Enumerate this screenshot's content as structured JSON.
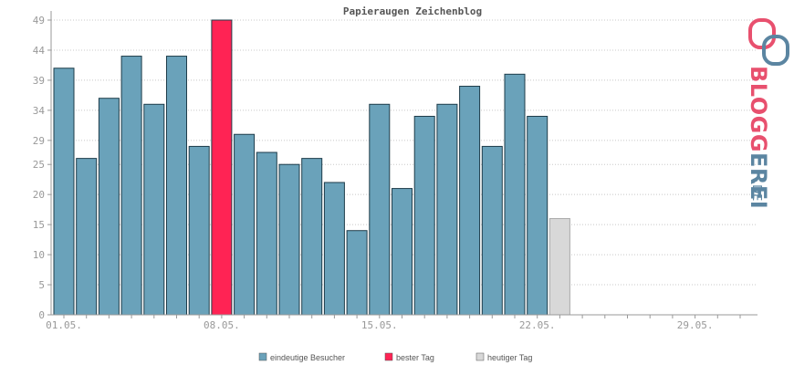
{
  "chart_data": {
    "type": "bar",
    "title": "Papieraugen Zeichenblog",
    "x_tick_labels": [
      "01.05.",
      "08.05.",
      "15.05.",
      "22.05.",
      "29.05."
    ],
    "x_tick_days": [
      1,
      8,
      15,
      22,
      29
    ],
    "days": [
      1,
      2,
      3,
      4,
      5,
      6,
      7,
      8,
      9,
      10,
      11,
      12,
      13,
      14,
      15,
      16,
      17,
      18,
      19,
      20,
      21,
      22,
      23
    ],
    "values": [
      41,
      26,
      36,
      43,
      35,
      43,
      28,
      49,
      30,
      27,
      25,
      26,
      22,
      14,
      35,
      21,
      33,
      35,
      38,
      28,
      40,
      33,
      16
    ],
    "kinds": [
      "normal",
      "normal",
      "normal",
      "normal",
      "normal",
      "normal",
      "normal",
      "best",
      "normal",
      "normal",
      "normal",
      "normal",
      "normal",
      "normal",
      "normal",
      "normal",
      "normal",
      "normal",
      "normal",
      "normal",
      "normal",
      "normal",
      "today"
    ],
    "y_ticks": [
      0,
      5,
      10,
      15,
      20,
      25,
      29,
      34,
      39,
      44,
      49
    ],
    "ylim": [
      0,
      49
    ],
    "xlim_days": [
      1,
      31
    ],
    "grid": true,
    "legend_position": "bottom-center",
    "legend": [
      {
        "label": "eindeutige Besucher",
        "color": "#6aa2ba"
      },
      {
        "label": "bester Tag",
        "color": "#ff2354"
      },
      {
        "label": "heutiger Tag",
        "color": "#d8d8d8"
      }
    ],
    "colors": {
      "normal": "#6aa2ba",
      "best": "#ff2354",
      "today": "#d8d8d8"
    }
  },
  "logo": {
    "text": "BLOGGEREI",
    "suffix": ".DE",
    "icon": "bloggerei-speech-bubbles-icon"
  }
}
